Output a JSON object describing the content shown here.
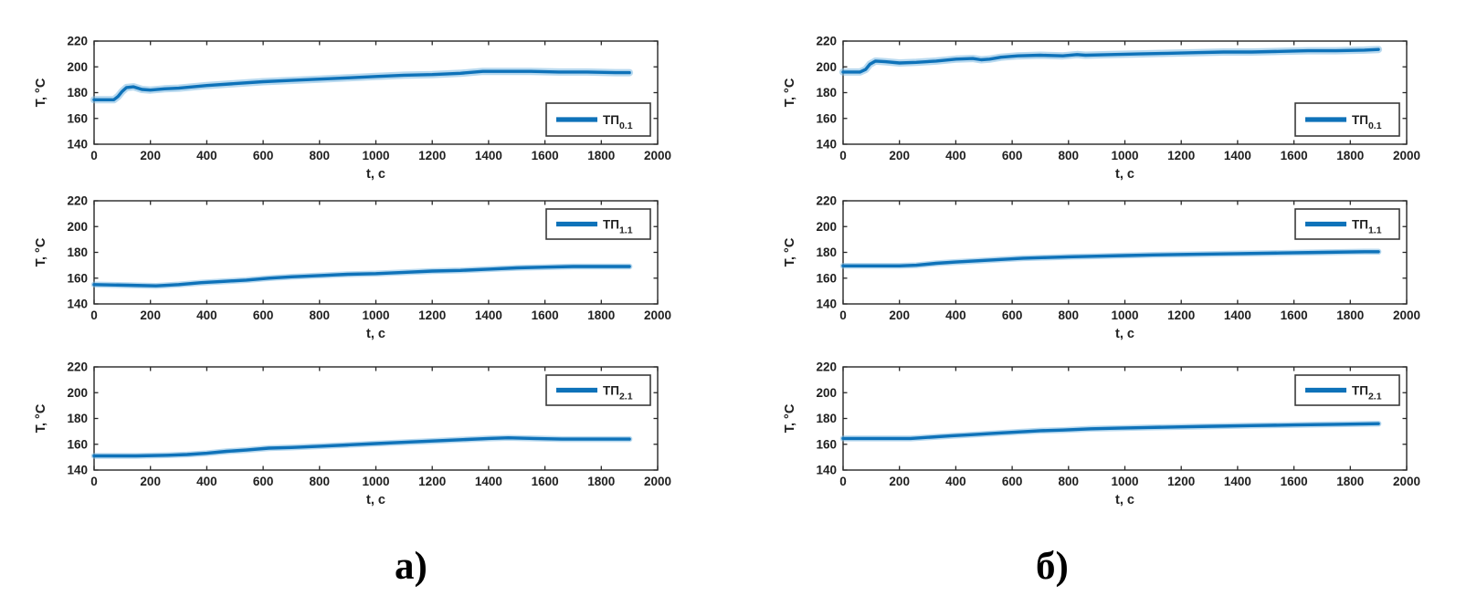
{
  "captions": {
    "a": "а)",
    "b": "б)"
  },
  "colors": {
    "line": "#0E72B9",
    "line_halo": "#7DB9E2",
    "axis": "#262626",
    "legend_border": "#3a3a3a",
    "background": "#ffffff"
  },
  "chart_data": [
    {
      "id": "panel-a-top",
      "panel": "а)",
      "type": "line",
      "xlabel": "t, с",
      "ylabel": "T, °C",
      "xlim": [
        0,
        2000
      ],
      "ylim": [
        140,
        220
      ],
      "xticks": [
        0,
        200,
        400,
        600,
        800,
        1000,
        1200,
        1400,
        1600,
        1800,
        2000
      ],
      "yticks": [
        140,
        160,
        180,
        200,
        220
      ],
      "grid": false,
      "legend": {
        "label": "ТП",
        "subscript": "0.1",
        "position": "southeast"
      },
      "series": [
        {
          "name": "ТП 0.1",
          "x": [
            0,
            70,
            85,
            100,
            115,
            140,
            170,
            200,
            250,
            300,
            400,
            500,
            600,
            700,
            800,
            900,
            1000,
            1100,
            1200,
            1300,
            1380,
            1450,
            1550,
            1650,
            1750,
            1850,
            1900
          ],
          "y": [
            174.5,
            174.5,
            177,
            181,
            184,
            184.5,
            182.5,
            182,
            183,
            183.5,
            185.5,
            187,
            188.5,
            189.5,
            190.5,
            191.5,
            192.5,
            193.5,
            194,
            195,
            196.5,
            196.5,
            196.5,
            196,
            196,
            195.5,
            195.5
          ]
        }
      ]
    },
    {
      "id": "panel-b-top",
      "panel": "б)",
      "type": "line",
      "xlabel": "t, с",
      "ylabel": "T, °C",
      "xlim": [
        0,
        2000
      ],
      "ylim": [
        140,
        220
      ],
      "xticks": [
        0,
        200,
        400,
        600,
        800,
        1000,
        1200,
        1400,
        1600,
        1800,
        2000
      ],
      "yticks": [
        140,
        160,
        180,
        200,
        220
      ],
      "grid": false,
      "legend": {
        "label": "ТП",
        "subscript": "0.1",
        "position": "southeast"
      },
      "series": [
        {
          "name": "ТП 0.1",
          "x": [
            0,
            60,
            80,
            95,
            115,
            150,
            200,
            260,
            330,
            400,
            460,
            490,
            520,
            560,
            620,
            700,
            780,
            830,
            860,
            950,
            1050,
            1150,
            1250,
            1350,
            1450,
            1550,
            1650,
            1750,
            1850,
            1900
          ],
          "y": [
            196,
            196,
            198,
            202,
            204.5,
            204,
            203,
            203.5,
            204.5,
            206,
            206.5,
            205.5,
            206,
            207.5,
            208.5,
            209,
            208.5,
            209.5,
            209,
            209.5,
            210,
            210.5,
            211,
            211.5,
            211.5,
            212,
            212.5,
            212.5,
            213,
            213.5
          ]
        }
      ]
    },
    {
      "id": "panel-a-middle",
      "panel": "а)",
      "type": "line",
      "xlabel": "t, с",
      "ylabel": "T, °C",
      "xlim": [
        0,
        2000
      ],
      "ylim": [
        140,
        220
      ],
      "xticks": [
        0,
        200,
        400,
        600,
        800,
        1000,
        1200,
        1400,
        1600,
        1800,
        2000
      ],
      "yticks": [
        140,
        160,
        180,
        200,
        220
      ],
      "grid": false,
      "legend": {
        "label": "ТП",
        "subscript": "1.1",
        "position": "northeast"
      },
      "series": [
        {
          "name": "ТП 1.1",
          "x": [
            0,
            120,
            220,
            300,
            380,
            460,
            540,
            620,
            700,
            800,
            900,
            1000,
            1100,
            1200,
            1300,
            1400,
            1500,
            1600,
            1700,
            1800,
            1900
          ],
          "y": [
            155,
            154.5,
            154,
            155,
            156.5,
            157.5,
            158.5,
            160,
            161,
            162,
            163,
            163.5,
            164.5,
            165.5,
            166,
            167,
            168,
            168.5,
            169,
            169,
            169
          ]
        }
      ]
    },
    {
      "id": "panel-b-middle",
      "panel": "б)",
      "type": "line",
      "xlabel": "t, с",
      "ylabel": "T, °C",
      "xlim": [
        0,
        2000
      ],
      "ylim": [
        140,
        220
      ],
      "xticks": [
        0,
        200,
        400,
        600,
        800,
        1000,
        1200,
        1400,
        1600,
        1800,
        2000
      ],
      "yticks": [
        140,
        160,
        180,
        200,
        220
      ],
      "grid": false,
      "legend": {
        "label": "ТП",
        "subscript": "1.1",
        "position": "northeast"
      },
      "series": [
        {
          "name": "ТП 1.1",
          "x": [
            0,
            100,
            200,
            260,
            330,
            400,
            480,
            560,
            640,
            720,
            800,
            900,
            1000,
            1100,
            1250,
            1400,
            1550,
            1700,
            1850,
            1900
          ],
          "y": [
            169.5,
            169.5,
            169.5,
            170,
            171.5,
            172.5,
            173.5,
            174.5,
            175.5,
            176,
            176.5,
            177,
            177.5,
            178,
            178.5,
            179,
            179.5,
            180,
            180.5,
            180.5
          ]
        }
      ]
    },
    {
      "id": "panel-a-bottom",
      "panel": "а)",
      "type": "line",
      "xlabel": "t, с",
      "ylabel": "T, °C",
      "xlim": [
        0,
        2000
      ],
      "ylim": [
        140,
        220
      ],
      "xticks": [
        0,
        200,
        400,
        600,
        800,
        1000,
        1200,
        1400,
        1600,
        1800,
        2000
      ],
      "yticks": [
        140,
        160,
        180,
        200,
        220
      ],
      "grid": false,
      "legend": {
        "label": "ТП",
        "subscript": "2.1",
        "position": "northeast"
      },
      "series": [
        {
          "name": "ТП 2.1",
          "x": [
            0,
            150,
            260,
            330,
            400,
            470,
            540,
            620,
            700,
            800,
            900,
            1000,
            1100,
            1200,
            1300,
            1400,
            1470,
            1560,
            1660,
            1780,
            1900
          ],
          "y": [
            151,
            151,
            151.5,
            152,
            153,
            154.5,
            155.5,
            157,
            157.5,
            158.5,
            159.5,
            160.5,
            161.5,
            162.5,
            163.5,
            164.5,
            165,
            164.5,
            164,
            164,
            164
          ]
        }
      ]
    },
    {
      "id": "panel-b-bottom",
      "panel": "б)",
      "type": "line",
      "xlabel": "t, с",
      "ylabel": "T, °C",
      "xlim": [
        0,
        2000
      ],
      "ylim": [
        140,
        220
      ],
      "xticks": [
        0,
        200,
        400,
        600,
        800,
        1000,
        1200,
        1400,
        1600,
        1800,
        2000
      ],
      "yticks": [
        140,
        160,
        180,
        200,
        220
      ],
      "grid": false,
      "legend": {
        "label": "ТП",
        "subscript": "2.1",
        "position": "northeast"
      },
      "series": [
        {
          "name": "ТП 2.1",
          "x": [
            0,
            130,
            240,
            310,
            380,
            460,
            540,
            620,
            700,
            780,
            880,
            980,
            1080,
            1200,
            1320,
            1450,
            1600,
            1750,
            1900
          ],
          "y": [
            164.5,
            164.5,
            164.5,
            165.5,
            166.5,
            167.5,
            168.5,
            169.5,
            170.5,
            171,
            172,
            172.5,
            173,
            173.5,
            174,
            174.5,
            175,
            175.5,
            176
          ]
        }
      ]
    }
  ]
}
